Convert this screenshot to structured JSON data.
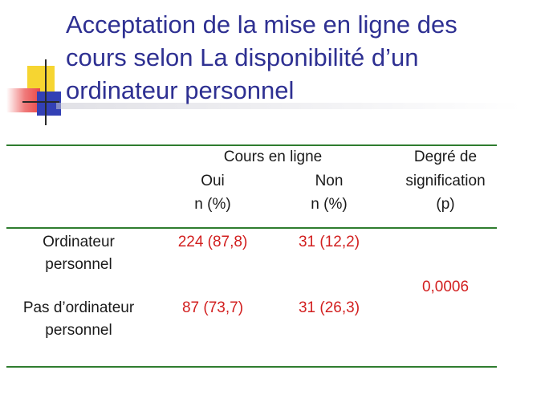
{
  "slide": {
    "title_lines": [
      "Acceptation de la mise en ligne des",
      "cours selon La disponibilité d’un",
      "ordinateur personnel"
    ]
  },
  "table": {
    "group_header": "Cours en ligne",
    "col_oui": "Oui",
    "col_non": "Non",
    "unit": "n (%)",
    "col_p_lines": [
      "Degré de",
      "signification",
      "(p)"
    ],
    "rows": [
      {
        "label_lines": [
          "Ordinateur",
          "personnel"
        ],
        "oui": "224 (87,8)",
        "non": "31 (12,2)"
      },
      {
        "label_lines": [
          "Pas d’ordinateur",
          "personnel"
        ],
        "oui": "87 (73,7)",
        "non": "31 (26,3)"
      }
    ],
    "p_value": "0,0006"
  },
  "colors": {
    "title": "#2e3092",
    "rule": "#2f7d2f",
    "value": "#d21f1f"
  }
}
